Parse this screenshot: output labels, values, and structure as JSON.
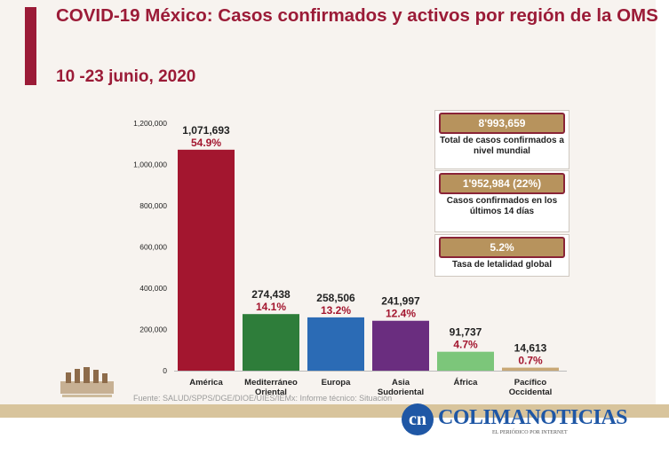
{
  "header": {
    "title": "COVID-19 México: Casos confirmados y activos por región de la OMS",
    "subtitle": "10 -23 junio, 2020"
  },
  "stats": [
    {
      "value": "8'993,659",
      "label": "Total de casos confirmados a nivel mundial"
    },
    {
      "value": "1'952,984 (22%)",
      "label": "Casos confirmados en los últimos 14 días"
    },
    {
      "value": "5.2%",
      "label": "Tasa de letalidad global"
    }
  ],
  "footer": {
    "source": "Fuente: SALUD/SPPS/DGE/DIOE/UIES/IEMx: Informe técnico: Situación",
    "brand_name": "COLIMANOTICIAS",
    "brand_tagline": "EL PERIÓDICO POR INTERNET",
    "brand_logo": "cn"
  },
  "chart_data": {
    "type": "bar",
    "categories": [
      "América",
      "Mediterráneo Oriental",
      "Europa",
      "Asia Sudoriental",
      "África",
      "Pacífico Occidental"
    ],
    "values": [
      1071693,
      274438,
      258506,
      241997,
      91737,
      14613
    ],
    "value_labels": [
      "1,071,693",
      "274,438",
      "258,506",
      "241,997",
      "91,737",
      "14,613"
    ],
    "percent_labels": [
      "54.9%",
      "14.1%",
      "13.2%",
      "12.4%",
      "4.7%",
      "0.7%"
    ],
    "colors": [
      "#a3162f",
      "#2e7d3a",
      "#2b6bb5",
      "#6a2d7f",
      "#7cc67a",
      "#c9a876"
    ],
    "ylim": [
      0,
      1200000
    ],
    "yticks": [
      0,
      200000,
      400000,
      600000,
      800000,
      1000000,
      1200000
    ],
    "ytick_labels": [
      "0",
      "200,000",
      "400,000",
      "600,000",
      "800,000",
      "1,000,000",
      "1,200,000"
    ],
    "grid": false,
    "legend": "none"
  },
  "colors": {
    "accent": "#9b1b37",
    "percent_text": "#a3162f",
    "stat_fill": "#b7935d",
    "stat_border": "#8a2437",
    "brand_blue": "#1f57a5"
  }
}
